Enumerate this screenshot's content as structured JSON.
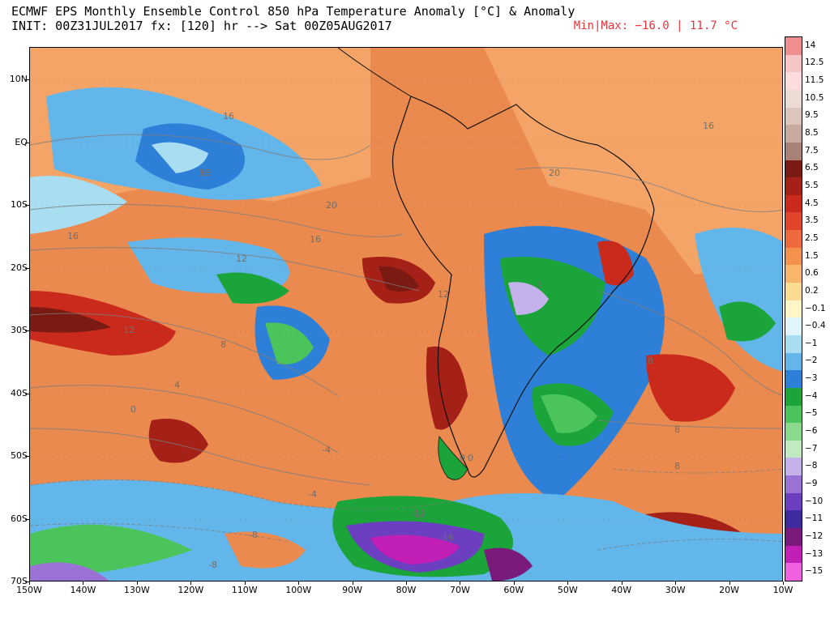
{
  "header": {
    "line1": "ECMWF EPS Monthly Ensemble Control 850 hPa Temperature Anomaly [°C] & Anomaly",
    "line2": "INIT: 00Z31JUL2017 fx: [120] hr --> Sat 00Z05AUG2017",
    "minmax": "Min|Max: −16.0 | 11.7 °C",
    "minmax_color": "#e8353b"
  },
  "map": {
    "lat_labels": [
      "10N",
      "EQ",
      "10S",
      "20S",
      "30S",
      "40S",
      "50S",
      "60S",
      "70S"
    ],
    "lon_labels": [
      "150W",
      "140W",
      "130W",
      "120W",
      "110W",
      "100W",
      "90W",
      "80W",
      "70W",
      "60W",
      "50W",
      "40W",
      "30W",
      "20W",
      "10W"
    ],
    "contour_labels": [
      "16",
      "16",
      "20",
      "16",
      "12",
      "16",
      "16",
      "20",
      "12",
      "8",
      "4",
      "0",
      "-4",
      "-8",
      "-12",
      "-8",
      "-4",
      "0",
      "-16",
      "8",
      "12",
      "8",
      "8",
      "-12",
      "0",
      "16",
      "2"
    ]
  },
  "colorbar": {
    "labels": [
      "14",
      "12.5",
      "11.5",
      "10.5",
      "9.5",
      "8.5",
      "7.5",
      "6.5",
      "5.5",
      "4.5",
      "3.5",
      "2.5",
      "1.5",
      "0.6",
      "0.2",
      "−0.1",
      "−0.4",
      "−1",
      "−2",
      "−3",
      "−4",
      "−5",
      "−6",
      "−7",
      "−8",
      "−9",
      "−10",
      "−11",
      "−12",
      "−13",
      "−15"
    ],
    "colors": [
      "#ee8e8e",
      "#f6c6c6",
      "#fcdcdc",
      "#eadbd5",
      "#dcc5bd",
      "#c8aaa0",
      "#a88278",
      "#7a1a12",
      "#a52017",
      "#c92a1c",
      "#e0442a",
      "#ee6a3c",
      "#f4924c",
      "#f7b66a",
      "#fbdc92",
      "#fff6c8",
      "#e0f4fb",
      "#a9ddf2",
      "#62b6ea",
      "#2e7fd8",
      "#1aa43a",
      "#4cc45c",
      "#8ad98d",
      "#c2eac0",
      "#c6b2ea",
      "#9a72d6",
      "#6b3fc0",
      "#3f2aa0",
      "#7a1a7a",
      "#c21fb6",
      "#f061e0"
    ]
  }
}
